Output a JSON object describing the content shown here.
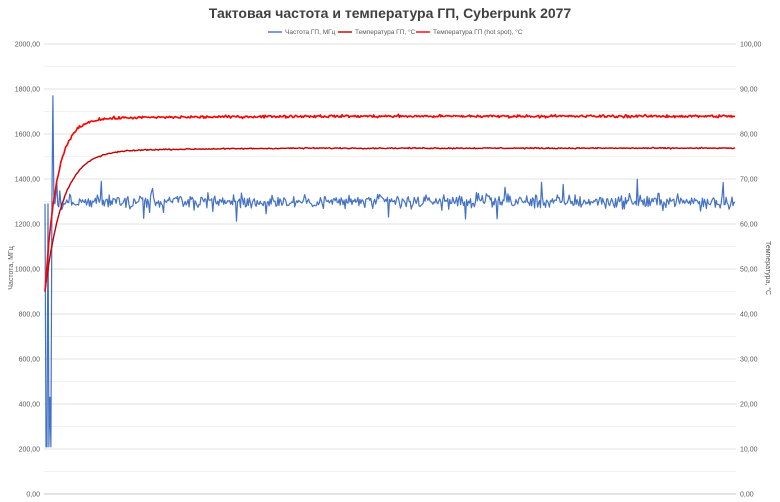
{
  "chart_data": {
    "type": "line",
    "title": "Тактовая частота и температура ГП, Cyberpunk 2077",
    "y_left_label": "Частота, МГц",
    "y_right_label": "Температура, °С",
    "y_left_lim": [
      0,
      2000
    ],
    "y_right_lim": [
      0,
      100
    ],
    "y_left_ticks": [
      "0,00",
      "200,00",
      "400,00",
      "600,00",
      "800,00",
      "1000,00",
      "1200,00",
      "1400,00",
      "1600,00",
      "1800,00",
      "2000,00"
    ],
    "y_right_ticks": [
      "0,00",
      "10,00",
      "20,00",
      "30,00",
      "40,00",
      "50,00",
      "60,00",
      "70,00",
      "80,00",
      "90,00",
      "100,00"
    ],
    "grid": true,
    "legend_position": "top",
    "sample_count": 700,
    "series": [
      {
        "name": "Частота ГП, МГц",
        "axis": "left",
        "color": "#4472C4",
        "mean": 1300,
        "jitter": 45,
        "start_values": [
          1290,
          210,
          210,
          1290,
          210,
          430,
          210,
          1290,
          1770,
          1300,
          1290,
          1330
        ]
      },
      {
        "name": "Температура ГП, °С",
        "axis": "right",
        "color": "#C00000",
        "start_value": 45,
        "plateau_value": 76.5,
        "jitter": 0.2
      },
      {
        "name": "Температура ГП (hot spot), °С",
        "axis": "right",
        "color": "#FF0000",
        "start_value": 45,
        "plateau_value": 83.6,
        "jitter": 0.45
      }
    ]
  }
}
